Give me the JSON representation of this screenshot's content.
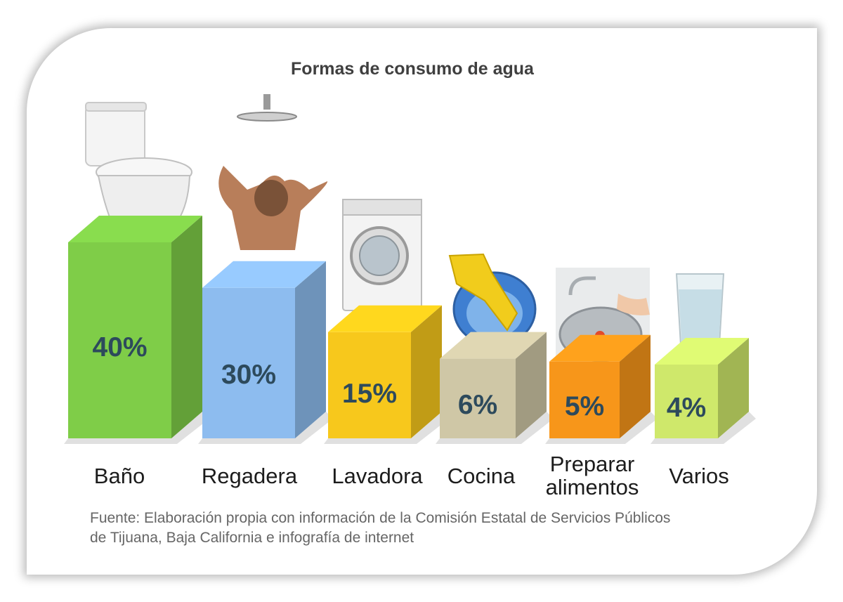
{
  "chart_data": {
    "type": "bar",
    "title": "Formas de consumo de agua",
    "categories": [
      "Baño",
      "Regadera",
      "Lavadora",
      "Cocina",
      "Preparar alimentos",
      "Varios"
    ],
    "category_lines": [
      [
        "Baño"
      ],
      [
        "Regadera"
      ],
      [
        "Lavadora"
      ],
      [
        "Cocina"
      ],
      [
        "Preparar",
        "alimentos"
      ],
      [
        "Varios"
      ]
    ],
    "values": [
      40,
      30,
      15,
      6,
      5,
      4
    ],
    "value_labels": [
      "40%",
      "30%",
      "15%",
      "6%",
      "5%",
      "4%"
    ],
    "colors": [
      "#7fcd48",
      "#8dbcef",
      "#f7c81c",
      "#cfc7a6",
      "#f7961a",
      "#cfe86b"
    ],
    "icons": [
      "toilet-icon",
      "shower-icon",
      "washing-machine-icon",
      "dishwashing-icon",
      "food-prep-icon",
      "water-glass-icon"
    ],
    "ylim": [
      0,
      40
    ],
    "source_lines": [
      "Fuente:  Elaboración propia con información de la Comisión Estatal de Servicios Públicos",
      "de Tijuana,  Baja California e infografía de internet"
    ],
    "grid": false,
    "legend": "none"
  }
}
